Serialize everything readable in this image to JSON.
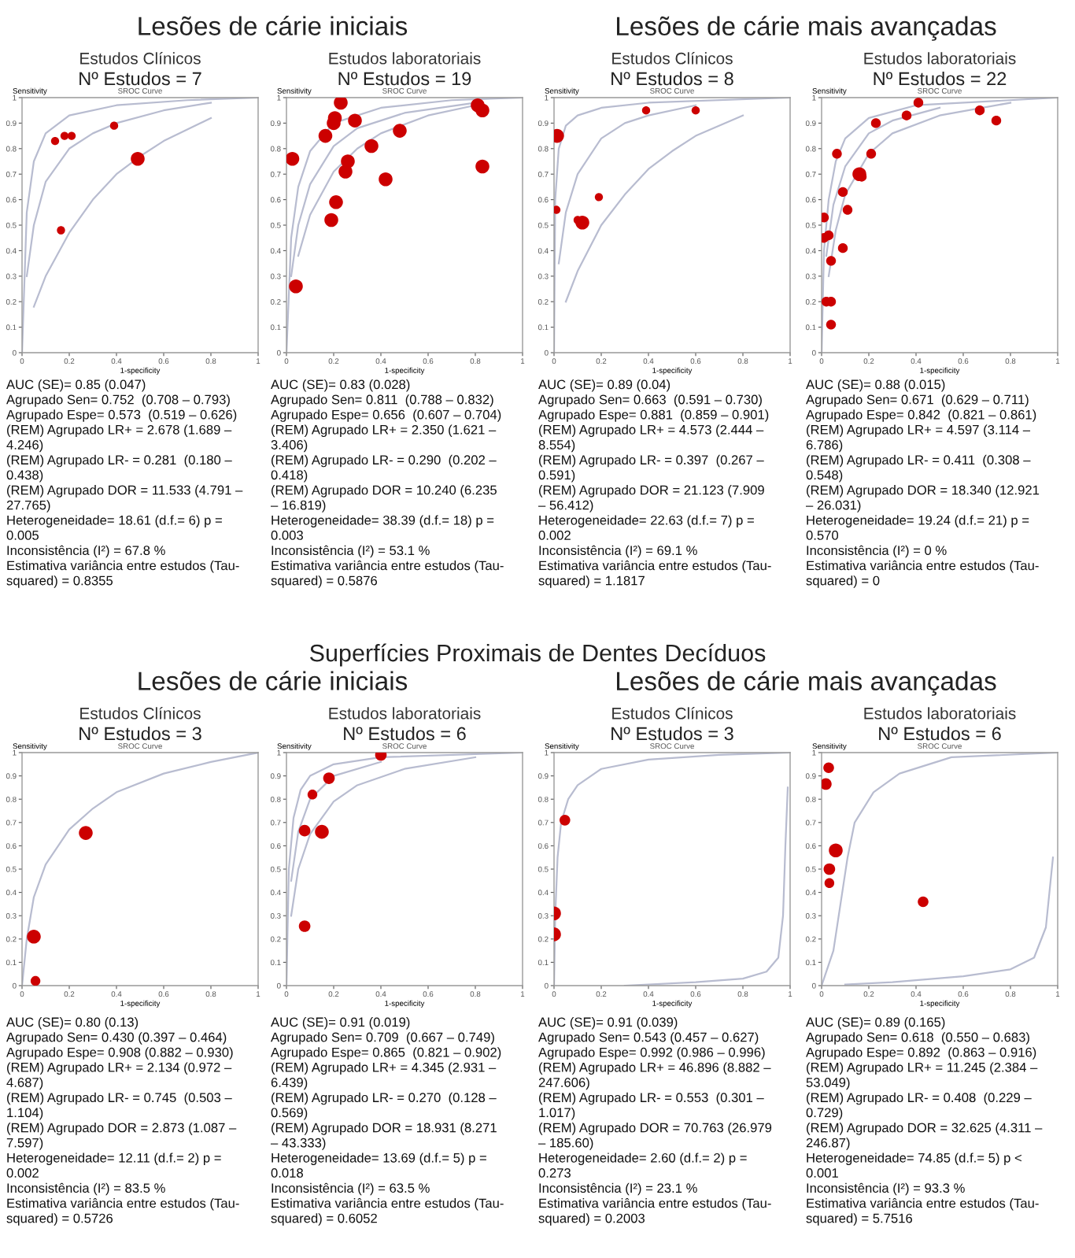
{
  "chart_data": [
    {
      "type": "bubble",
      "title": "Estudos Clínicos",
      "subtitle": "Nº Estudos = 7",
      "xlabel": "1-specificity",
      "ylabel": "Sensitivity",
      "xlim": [
        0,
        1
      ],
      "ylim": [
        0,
        1
      ],
      "xticks": [
        0,
        0.2,
        0.4,
        0.6,
        0.8,
        1
      ],
      "yticks": [
        0,
        0.1,
        0.2,
        0.3,
        0.4,
        0.5,
        0.6,
        0.7,
        0.8,
        0.9,
        1
      ],
      "annotations": [
        "AUC (SE)= 0.85 (0.047)\nAgrupado Sen= 0.752  (0.708 – 0.793)\nAgrupado Espe= 0.573  (0.519 – 0.626)\n(REM) Agrupado LR+ = 2.678 (1.689 –\n4.246)\n(REM) Agrupado LR- = 0.281  (0.180 –\n0.438)\n(REM) Agrupado DOR = 11.533 (4.791 –\n27.765)\nHeterogeneidade= 18.61 (d.f.= 6) p =\n0.005\nInconsistência (I²) = 67.8 %\nEstimativa variância entre estudos (Tau-\nsquared) = 0.8355",
        "SROC Curve",
        "Lesões de cárie iniciais"
      ],
      "series": [
        {
          "type": "bubble",
          "marker": "circle",
          "color": "#cc0000",
          "x": [
            0.14,
            0.18,
            0.21,
            0.39,
            0.49,
            0.165
          ],
          "values": [
            0.83,
            0.85,
            0.85,
            0.89,
            0.76,
            0.48
          ],
          "sizes": [
            0.35,
            0.35,
            0.35,
            0.35,
            1,
            0.35
          ]
        },
        {
          "type": "line",
          "color": "#b8bcd0",
          "x": [
            0,
            0.02,
            0.05,
            0.1,
            0.2,
            0.4,
            0.7,
            1
          ],
          "values": [
            0,
            0.55,
            0.75,
            0.86,
            0.93,
            0.97,
            0.99,
            1
          ]
        },
        {
          "type": "line",
          "color": "#b8bcd0",
          "x": [
            0.02,
            0.05,
            0.1,
            0.2,
            0.3,
            0.4,
            0.6,
            0.8
          ],
          "values": [
            0.3,
            0.5,
            0.67,
            0.8,
            0.86,
            0.9,
            0.95,
            0.98
          ]
        },
        {
          "type": "line",
          "color": "#b8bcd0",
          "x": [
            0.05,
            0.1,
            0.2,
            0.3,
            0.4,
            0.5,
            0.6,
            0.8
          ],
          "values": [
            0.18,
            0.3,
            0.47,
            0.6,
            0.7,
            0.77,
            0.83,
            0.92
          ]
        }
      ]
    },
    {
      "type": "bubble",
      "title": "Estudos laboratoriais",
      "subtitle": "Nº Estudos = 19",
      "xlabel": "1-specificity",
      "ylabel": "Sensitivity",
      "xlim": [
        0,
        1
      ],
      "ylim": [
        0,
        1
      ],
      "xticks": [
        0,
        0.2,
        0.4,
        0.6,
        0.8,
        1
      ],
      "yticks": [
        0,
        0.1,
        0.2,
        0.3,
        0.4,
        0.5,
        0.6,
        0.7,
        0.8,
        0.9,
        1
      ],
      "annotations": [
        "AUC (SE)= 0.83 (0.028)\nAgrupado Sen= 0.811  (0.788 – 0.832)\nAgrupado Espe= 0.656  (0.607 – 0.704)\n(REM) Agrupado LR+ = 2.350 (1.621 –\n3.406)\n(REM) Agrupado LR- = 0.290  (0.202 –\n0.418)\n(REM) Agrupado DOR = 10.240 (6.235\n– 16.819)\nHeterogeneidade= 38.39 (d.f.= 18) p =\n0.003\nInconsistência (I²) = 53.1 %\nEstimativa variância entre estudos (Tau-\nsquared) = 0.5876",
        "SROC Curve"
      ],
      "series": [
        {
          "type": "bubble",
          "marker": "circle",
          "color": "#cc0000",
          "x": [
            0.23,
            0.205,
            0.2,
            0.29,
            0.165,
            0.025,
            0.36,
            0.26,
            0.48,
            0.25,
            0.42,
            0.21,
            0.19,
            0.04,
            0.81,
            0.83,
            0.83
          ],
          "values": [
            0.98,
            0.92,
            0.9,
            0.91,
            0.85,
            0.76,
            0.81,
            0.75,
            0.87,
            0.71,
            0.68,
            0.59,
            0.52,
            0.26,
            0.97,
            0.95,
            0.73
          ],
          "sizes": [
            1,
            1,
            1,
            1,
            1,
            1,
            1,
            1,
            1,
            1,
            1,
            1,
            1,
            1,
            1,
            1,
            1
          ]
        },
        {
          "type": "line",
          "color": "#b8bcd0",
          "x": [
            0,
            0.02,
            0.05,
            0.1,
            0.2,
            0.4,
            0.7,
            1
          ],
          "values": [
            0,
            0.45,
            0.65,
            0.79,
            0.9,
            0.96,
            0.99,
            1
          ]
        },
        {
          "type": "line",
          "color": "#b8bcd0",
          "x": [
            0.02,
            0.05,
            0.1,
            0.2,
            0.3,
            0.5,
            0.8
          ],
          "values": [
            0.3,
            0.5,
            0.66,
            0.81,
            0.88,
            0.94,
            0.98
          ]
        },
        {
          "type": "line",
          "color": "#b8bcd0",
          "x": [
            0.05,
            0.1,
            0.2,
            0.3,
            0.4,
            0.6,
            0.8
          ],
          "values": [
            0.38,
            0.54,
            0.71,
            0.8,
            0.86,
            0.93,
            0.97
          ]
        }
      ]
    },
    {
      "type": "bubble",
      "title": "Estudos Clínicos",
      "subtitle": "Nº Estudos = 8",
      "xlabel": "1-specificity",
      "ylabel": "Sensitivity",
      "xlim": [
        0,
        1
      ],
      "ylim": [
        0,
        1
      ],
      "xticks": [
        0,
        0.2,
        0.4,
        0.6,
        0.8,
        1
      ],
      "yticks": [
        0,
        0.1,
        0.2,
        0.3,
        0.4,
        0.5,
        0.6,
        0.7,
        0.8,
        0.9,
        1
      ],
      "annotations": [
        "AUC (SE)= 0.89 (0.04)\nAgrupado Sen= 0.663  (0.591 – 0.730)\nAgrupado Espe= 0.881  (0.859 – 0.901)\n(REM) Agrupado LR+ = 4.573 (2.444 –\n8.554)\n(REM) Agrupado LR- = 0.397  (0.267 –\n0.591)\n(REM) Agrupado DOR = 21.123 (7.909\n– 56.412)\nHeterogeneidade= 22.63 (d.f.= 7) p =\n0.002\nInconsistência (I²) = 69.1 %\nEstimativa variância entre estudos (Tau-\nsquared) = 1.1817",
        "SROC Curve",
        "Lesões de cárie mais avançadas"
      ],
      "series": [
        {
          "type": "bubble",
          "marker": "circle",
          "color": "#cc0000",
          "x": [
            0.013,
            0.01,
            0.1,
            0.12,
            0.19,
            0.39,
            0.6
          ],
          "values": [
            0.85,
            0.56,
            0.52,
            0.51,
            0.61,
            0.95,
            0.95
          ],
          "sizes": [
            1,
            0.35,
            0.35,
            1,
            0.35,
            0.35,
            0.35
          ]
        },
        {
          "type": "line",
          "color": "#b8bcd0",
          "x": [
            0,
            0.005,
            0.02,
            0.05,
            0.1,
            0.2,
            0.4,
            1
          ],
          "values": [
            0,
            0.6,
            0.8,
            0.89,
            0.93,
            0.96,
            0.98,
            1
          ]
        },
        {
          "type": "line",
          "color": "#b8bcd0",
          "x": [
            0.02,
            0.05,
            0.1,
            0.2,
            0.3,
            0.4,
            0.6
          ],
          "values": [
            0.35,
            0.55,
            0.7,
            0.84,
            0.9,
            0.93,
            0.97
          ]
        },
        {
          "type": "line",
          "color": "#b8bcd0",
          "x": [
            0.05,
            0.1,
            0.2,
            0.3,
            0.4,
            0.5,
            0.6,
            0.8
          ],
          "values": [
            0.2,
            0.32,
            0.5,
            0.62,
            0.72,
            0.79,
            0.85,
            0.93
          ]
        }
      ]
    },
    {
      "type": "bubble",
      "title": "Estudos laboratoriais",
      "subtitle": "Nº Estudos = 22",
      "xlabel": "1-specificity",
      "ylabel": "Sensitivity",
      "xlim": [
        0,
        1
      ],
      "ylim": [
        0,
        1
      ],
      "xticks": [
        0,
        0.2,
        0.4,
        0.6,
        0.8,
        1
      ],
      "yticks": [
        0,
        0.1,
        0.2,
        0.3,
        0.4,
        0.5,
        0.6,
        0.7,
        0.8,
        0.9,
        1
      ],
      "annotations": [
        "AUC (SE)= 0.88 (0.015)\nAgrupado Sen= 0.671  (0.629 – 0.711)\nAgrupado Espe= 0.842  (0.821 – 0.861)\n(REM) Agrupado LR+ = 4.597 (3.114 –\n6.786)\n(REM) Agrupado LR- = 0.411  (0.308 –\n0.548)\n(REM) Agrupado DOR = 18.340 (12.921\n– 26.031)\nHeterogeneidade= 19.24 (d.f.= 21) p =\n0.570\nInconsistência (I²) = 0 %\nEstimativa variância entre estudos (Tau-\nsquared) = 0",
        "SROC Curve"
      ],
      "series": [
        {
          "type": "bubble",
          "marker": "circle",
          "color": "#cc0000",
          "x": [
            0.41,
            0.23,
            0.36,
            0.67,
            0.74,
            0.065,
            0.21,
            0.16,
            0.17,
            0.09,
            0.11,
            0.01,
            0.01,
            0.03,
            0.09,
            0.04,
            0.02,
            0.04,
            0.04
          ],
          "values": [
            0.98,
            0.9,
            0.93,
            0.95,
            0.91,
            0.78,
            0.78,
            0.7,
            0.69,
            0.63,
            0.56,
            0.53,
            0.45,
            0.46,
            0.41,
            0.36,
            0.2,
            0.2,
            0.11
          ],
          "sizes": [
            0.5,
            0.5,
            0.5,
            0.5,
            0.5,
            0.5,
            0.5,
            1,
            0.5,
            0.5,
            0.5,
            0.5,
            0.5,
            0.5,
            0.5,
            0.5,
            0.5,
            0.5,
            0.5
          ]
        },
        {
          "type": "line",
          "color": "#b8bcd0",
          "x": [
            0,
            0.01,
            0.03,
            0.06,
            0.1,
            0.2,
            0.4,
            1
          ],
          "values": [
            0,
            0.4,
            0.6,
            0.75,
            0.84,
            0.92,
            0.97,
            1
          ]
        },
        {
          "type": "line",
          "color": "#b8bcd0",
          "x": [
            0.02,
            0.05,
            0.1,
            0.2,
            0.3,
            0.5
          ],
          "values": [
            0.38,
            0.58,
            0.73,
            0.86,
            0.91,
            0.96
          ]
        },
        {
          "type": "line",
          "color": "#b8bcd0",
          "x": [
            0.03,
            0.06,
            0.1,
            0.2,
            0.3,
            0.5,
            0.8
          ],
          "values": [
            0.3,
            0.48,
            0.62,
            0.78,
            0.86,
            0.93,
            0.98
          ]
        }
      ]
    },
    {
      "type": "bubble",
      "title": "Estudos Clínicos",
      "subtitle": "Nº Estudos = 3",
      "xlabel": "1-specificity",
      "ylabel": "Sensitivity",
      "xlim": [
        0,
        1
      ],
      "ylim": [
        0,
        1
      ],
      "xticks": [
        0,
        0.2,
        0.4,
        0.6,
        0.8,
        1
      ],
      "yticks": [
        0,
        0.1,
        0.2,
        0.3,
        0.4,
        0.5,
        0.6,
        0.7,
        0.8,
        0.9,
        1
      ],
      "annotations": [
        "AUC (SE)= 0.80 (0.13)\nAgrupado Sen= 0.430 (0.397 – 0.464)\nAgrupado Espe= 0.908 (0.882 – 0.930)\n(REM) Agrupado LR+ = 2.134 (0.972 –\n4.687)\n(REM) Agrupado LR- = 0.745  (0.503 –\n1.104)\n(REM) Agrupado DOR = 2.873 (1.087 –\n7.597)\nHeterogeneidade= 12.11 (d.f.= 2) p =\n0.002\nInconsistência (I²) = 83.5 %\nEstimativa variância entre estudos (Tau-\nsquared) = 0.5726",
        "SROC Curve",
        "Lesões de cárie iniciais",
        "Superfícies Proximais de Dentes Decíduos"
      ],
      "series": [
        {
          "type": "bubble",
          "marker": "circle",
          "color": "#cc0000",
          "x": [
            0.05,
            0.057,
            0.27
          ],
          "values": [
            0.21,
            0.02,
            0.655
          ],
          "sizes": [
            1,
            0.5,
            1
          ]
        },
        {
          "type": "line",
          "color": "#b8bcd0",
          "x": [
            0,
            0.02,
            0.05,
            0.1,
            0.2,
            0.3,
            0.4,
            0.6,
            0.8,
            1
          ],
          "values": [
            0,
            0.2,
            0.38,
            0.52,
            0.67,
            0.76,
            0.83,
            0.91,
            0.96,
            1
          ]
        }
      ]
    },
    {
      "type": "bubble",
      "title": "Estudos laboratoriais",
      "subtitle": "Nº Estudos = 6",
      "xlabel": "1-specificity",
      "ylabel": "Sensitivity",
      "xlim": [
        0,
        1
      ],
      "ylim": [
        0,
        1
      ],
      "xticks": [
        0,
        0.2,
        0.4,
        0.6,
        0.8,
        1
      ],
      "yticks": [
        0,
        0.1,
        0.2,
        0.3,
        0.4,
        0.5,
        0.6,
        0.7,
        0.8,
        0.9,
        1
      ],
      "annotations": [
        "AUC (SE)= 0.91 (0.019)\nAgrupado Sen= 0.709  (0.667 – 0.749)\nAgrupado Espe= 0.865  (0.821 – 0.902)\n(REM) Agrupado LR+ = 4.345 (2.931 –\n6.439)\n(REM) Agrupado LR- = 0.270  (0.128 –\n0.569)\n(REM) Agrupado DOR = 18.931 (8.271\n– 43.333)\nHeterogeneidade= 13.69 (d.f.= 5) p =\n0.018\nInconsistência (I²) = 63.5 %\nEstimativa variância entre estudos (Tau-\nsquared) = 0.6052",
        "SROC Curve"
      ],
      "series": [
        {
          "type": "bubble",
          "marker": "circle",
          "color": "#cc0000",
          "x": [
            0.4,
            0.18,
            0.11,
            0.077,
            0.15,
            0.077
          ],
          "values": [
            0.99,
            0.89,
            0.82,
            0.665,
            0.66,
            0.255
          ],
          "sizes": [
            0.7,
            0.7,
            0.5,
            0.7,
            1,
            0.7
          ]
        },
        {
          "type": "line",
          "color": "#b8bcd0",
          "x": [
            0,
            0.01,
            0.03,
            0.06,
            0.1,
            0.2,
            0.4,
            1
          ],
          "values": [
            0,
            0.5,
            0.72,
            0.84,
            0.9,
            0.95,
            0.98,
            1
          ]
        },
        {
          "type": "line",
          "color": "#b8bcd0",
          "x": [
            0.02,
            0.05,
            0.1,
            0.2,
            0.4
          ],
          "values": [
            0.45,
            0.66,
            0.8,
            0.9,
            0.96
          ]
        },
        {
          "type": "line",
          "color": "#b8bcd0",
          "x": [
            0.02,
            0.05,
            0.1,
            0.2,
            0.3,
            0.5,
            0.8
          ],
          "values": [
            0.3,
            0.5,
            0.65,
            0.79,
            0.86,
            0.93,
            0.98
          ]
        }
      ]
    },
    {
      "type": "bubble",
      "title": "Estudos Clínicos",
      "subtitle": "Nº Estudos = 3",
      "xlabel": "1-specificity",
      "ylabel": "Sensitivity",
      "xlim": [
        0,
        1
      ],
      "ylim": [
        0,
        1
      ],
      "xticks": [
        0,
        0.2,
        0.4,
        0.6,
        0.8,
        1
      ],
      "yticks": [
        0,
        0.1,
        0.2,
        0.3,
        0.4,
        0.5,
        0.6,
        0.7,
        0.8,
        0.9,
        1
      ],
      "annotations": [
        "AUC (SE)= 0.91 (0.039)\nAgrupado Sen= 0.543 (0.457 – 0.627)\nAgrupado Espe= 0.992 (0.986 – 0.996)\n(REM) Agrupado LR+ = 46.896 (8.882 –\n247.606)\n(REM) Agrupado LR- = 0.553  (0.301 –\n1.017)\n(REM) Agrupado DOR = 70.763 (26.979\n– 185.60)\nHeterogeneidade= 2.60 (d.f.= 2) p =\n0.273\nInconsistência (I²) = 23.1 %\nEstimativa variância entre estudos (Tau-\nsquared) = 0.2003",
        "SROC Curve",
        "Lesões de cárie mais avançadas"
      ],
      "series": [
        {
          "type": "bubble",
          "marker": "circle",
          "color": "#cc0000",
          "x": [
            0.046,
            0,
            0
          ],
          "values": [
            0.71,
            0.31,
            0.22
          ],
          "sizes": [
            0.6,
            1,
            1
          ]
        },
        {
          "type": "line",
          "color": "#b8bcd0",
          "x": [
            0,
            0.005,
            0.015,
            0.03,
            0.06,
            0.1,
            0.2,
            0.4,
            0.7,
            1
          ],
          "values": [
            0,
            0.3,
            0.55,
            0.7,
            0.8,
            0.86,
            0.93,
            0.97,
            0.99,
            1
          ]
        },
        {
          "type": "line",
          "color": "#b8bcd0",
          "x": [
            0.3,
            0.6,
            0.8,
            0.9,
            0.95,
            0.97,
            0.98,
            0.99
          ],
          "values": [
            0,
            0.015,
            0.03,
            0.06,
            0.12,
            0.3,
            0.6,
            0.85
          ]
        }
      ]
    },
    {
      "type": "bubble",
      "title": "Estudos laboratoriais",
      "subtitle": "Nº Estudos = 6",
      "xlabel": "1-specificity",
      "ylabel": "Sensitivity",
      "xlim": [
        0,
        1
      ],
      "ylim": [
        0,
        1
      ],
      "xticks": [
        0,
        0.2,
        0.4,
        0.6,
        0.8,
        1
      ],
      "yticks": [
        0,
        0.1,
        0.2,
        0.3,
        0.4,
        0.5,
        0.6,
        0.7,
        0.8,
        0.9,
        1
      ],
      "annotations": [
        "AUC (SE)= 0.89 (0.165)\nAgrupado Sen= 0.618  (0.550 – 0.683)\nAgrupado Espe= 0.892  (0.863 – 0.916)\n(REM) Agrupado LR+ = 11.245 (2.384 –\n53.049)\n(REM) Agrupado LR- = 0.408  (0.229 –\n0.729)\n(REM) Agrupado DOR = 32.625 (4.311 –\n246.87)\nHeterogeneidade= 74.85 (d.f.= 5) p <\n0.001\nInconsistência (I²) = 93.3 %\nEstimativa variância entre estudos (Tau-\nsquared) = 5.7516",
        "SROC Curve"
      ],
      "series": [
        {
          "type": "bubble",
          "marker": "circle",
          "color": "#cc0000",
          "x": [
            0.03,
            0.018,
            0.06,
            0.033,
            0.033,
            0.43
          ],
          "values": [
            0.935,
            0.865,
            0.58,
            0.5,
            0.44,
            0.36
          ],
          "sizes": [
            0.6,
            0.7,
            1,
            0.7,
            0.5,
            0.6
          ]
        },
        {
          "type": "line",
          "color": "#b8bcd0",
          "x": [
            0,
            0.05,
            0.08,
            0.11,
            0.14,
            0.22,
            0.33,
            0.55,
            1
          ],
          "values": [
            0,
            0.15,
            0.35,
            0.55,
            0.7,
            0.83,
            0.91,
            0.98,
            1
          ]
        },
        {
          "type": "line",
          "color": "#b8bcd0",
          "x": [
            0.1,
            0.3,
            0.6,
            0.8,
            0.9,
            0.95,
            0.98
          ],
          "values": [
            0.005,
            0.015,
            0.04,
            0.07,
            0.12,
            0.25,
            0.55
          ]
        }
      ]
    }
  ]
}
